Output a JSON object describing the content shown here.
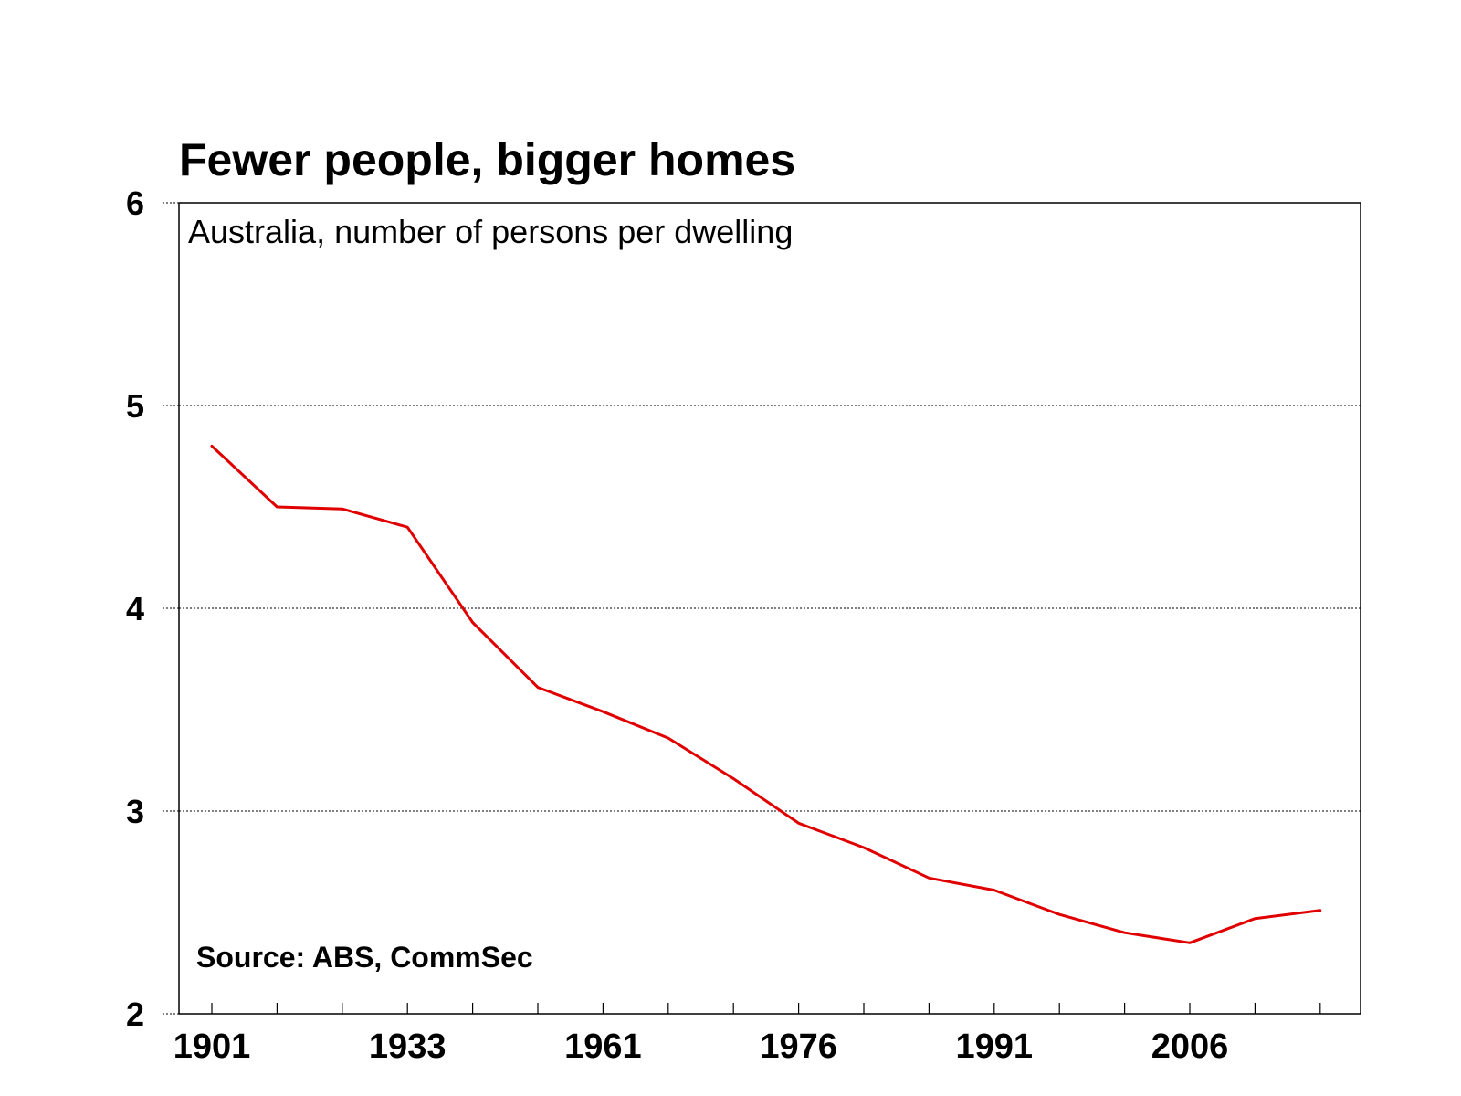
{
  "chart_data": {
    "type": "line",
    "title": "Fewer people, bigger homes",
    "subtitle": "Australia, number of  persons per dwelling",
    "source": "Source: ABS, CommSec",
    "xlabel": "",
    "ylabel": "",
    "ylim": [
      2,
      6
    ],
    "yticks": [
      "2",
      "3",
      "4",
      "5",
      "6"
    ],
    "xtick_labels": [
      "1901",
      "1933",
      "1961",
      "1976",
      "1991",
      "2006"
    ],
    "grid": "horizontal dotted",
    "series": [
      {
        "color": "#e00000",
        "x": [
          "1901",
          "1911",
          "1921",
          "1933",
          "1947",
          "1954",
          "1961",
          "1966",
          "1971",
          "1976",
          "1981",
          "1986",
          "1991",
          "1996",
          "2001",
          "2006",
          "2011",
          "2016"
        ],
        "values": [
          4.8,
          4.5,
          4.49,
          4.4,
          3.93,
          3.61,
          3.49,
          3.36,
          3.16,
          2.94,
          2.82,
          2.67,
          2.61,
          2.49,
          2.4,
          2.35,
          2.47,
          2.51
        ]
      }
    ]
  }
}
